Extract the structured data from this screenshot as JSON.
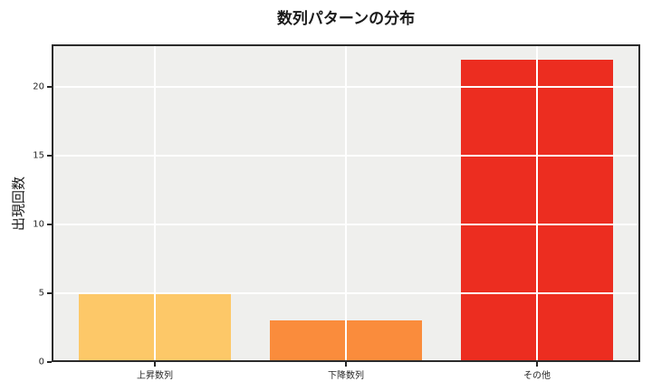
{
  "chart_data": {
    "type": "bar",
    "title": "数列パターンの分布",
    "xlabel": "",
    "ylabel": "出現回数",
    "categories": [
      "上昇数列",
      "下降数列",
      "その他"
    ],
    "values": [
      5,
      3,
      22
    ],
    "bar_colors": [
      "#FDC868",
      "#FA8C3C",
      "#EC2D20"
    ],
    "bar_width": 0.8,
    "xlim": [
      -0.54,
      2.54
    ],
    "ylim": [
      0,
      23.1
    ],
    "yticks": [
      0,
      5,
      10,
      15,
      20
    ],
    "grid": "on",
    "grid_color": "#ffffff",
    "plot_background": "#efefed",
    "figure_background": "#ffffff",
    "spine_color": "#2b2b2b",
    "tick_color": "#262626",
    "title_color": "#1a1a1a"
  }
}
